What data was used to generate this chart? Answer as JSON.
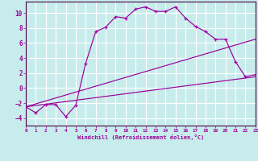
{
  "background_color": "#c8ecec",
  "grid_color": "#ffffff",
  "line_color": "#990099",
  "marker_color": "#aa00aa",
  "xlabel": "Windchill (Refroidissement éolien,°C)",
  "xlim": [
    0,
    23
  ],
  "ylim": [
    -5,
    11.5
  ],
  "yticks": [
    -4,
    -2,
    0,
    2,
    4,
    6,
    8,
    10
  ],
  "xticks": [
    0,
    1,
    2,
    3,
    4,
    5,
    6,
    7,
    8,
    9,
    10,
    11,
    12,
    13,
    14,
    15,
    16,
    17,
    18,
    19,
    20,
    21,
    22,
    23
  ],
  "series1_x": [
    0,
    1,
    2,
    3,
    4,
    5,
    6,
    7,
    8,
    9,
    10,
    11,
    12,
    13,
    14,
    15,
    16,
    17,
    18,
    19,
    20,
    21,
    22,
    23
  ],
  "series1_y": [
    -2.5,
    -3.3,
    -2.2,
    -2.2,
    -3.8,
    -2.3,
    3.3,
    7.5,
    8.1,
    9.5,
    9.3,
    10.5,
    10.8,
    10.2,
    10.2,
    10.8,
    9.3,
    8.2,
    7.5,
    6.5,
    6.5,
    3.5,
    1.5,
    1.8
  ],
  "series2_x": [
    0,
    23
  ],
  "series2_y": [
    -2.5,
    6.5
  ],
  "series3_x": [
    0,
    23
  ],
  "series3_y": [
    -2.5,
    1.5
  ]
}
